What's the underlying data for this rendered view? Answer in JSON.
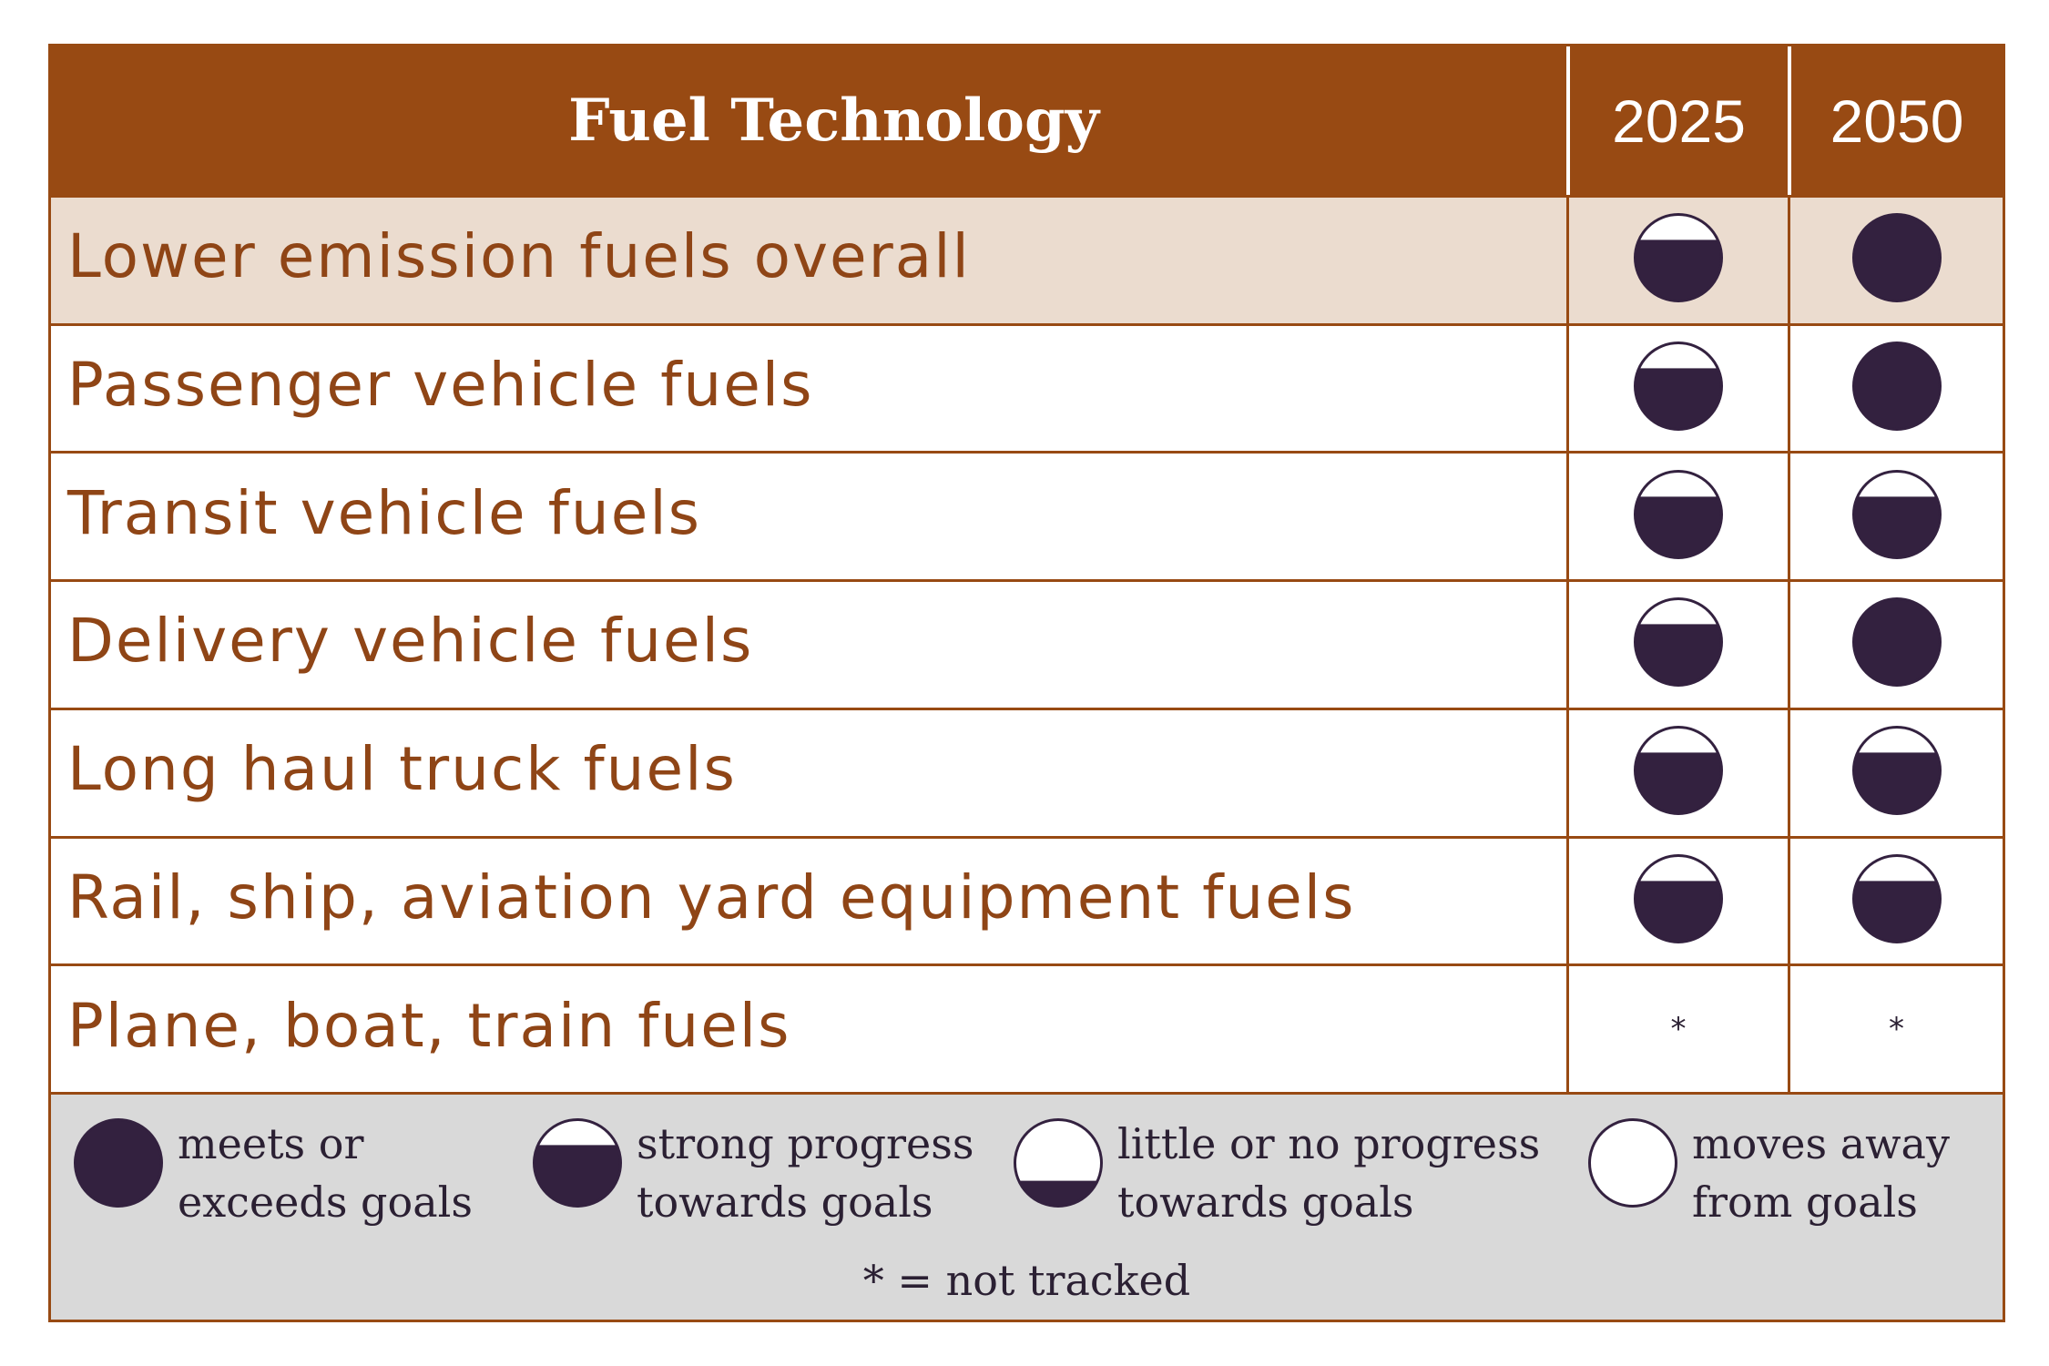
{
  "header": {
    "title": "Fuel Technology",
    "years": [
      "2025",
      "2050"
    ]
  },
  "rows": [
    {
      "label": "Lower emission fuels overall",
      "y2025": "strong-progress",
      "y2050": "meets-goals"
    },
    {
      "label": "Passenger vehicle fuels",
      "y2025": "strong-progress",
      "y2050": "meets-goals"
    },
    {
      "label": "Transit vehicle fuels",
      "y2025": "strong-progress",
      "y2050": "strong-progress"
    },
    {
      "label": "Delivery vehicle fuels",
      "y2025": "strong-progress",
      "y2050": "meets-goals"
    },
    {
      "label": "Long haul truck fuels",
      "y2025": "strong-progress",
      "y2050": "strong-progress"
    },
    {
      "label": "Rail, ship, aviation yard equipment fuels",
      "y2025": "strong-progress",
      "y2050": "strong-progress"
    },
    {
      "label": "Plane, boat, train fuels",
      "y2025": "not-tracked",
      "y2050": "not-tracked"
    }
  ],
  "legend": {
    "meets": {
      "line1": "meets or",
      "line2": "exceeds goals"
    },
    "strong": {
      "line1": "strong progress",
      "line2": "towards goals"
    },
    "little": {
      "line1": "little or no progress",
      "line2": "towards goals"
    },
    "away": {
      "line1": "moves away",
      "line2": "from goals"
    },
    "not_tracked_symbol": "*",
    "not_tracked_note": "= not tracked"
  },
  "colors": {
    "header_bg": "#984a13",
    "label_text": "#8f4516",
    "icon_fill": "#33213f",
    "highlight_row": "#ebdccf",
    "legend_bg": "#d9d9d9"
  }
}
